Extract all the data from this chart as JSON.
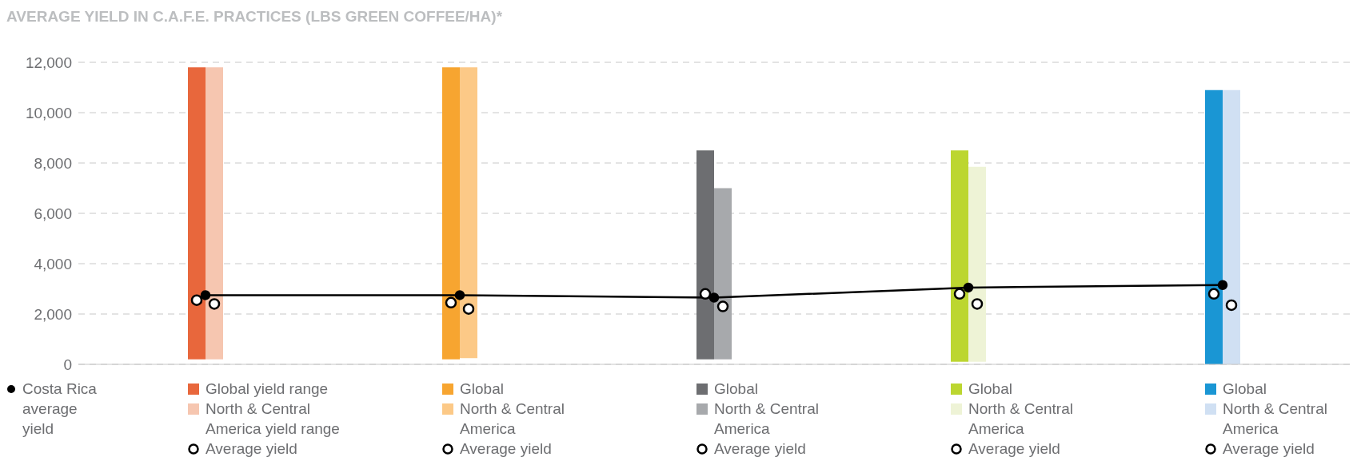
{
  "chart_data": {
    "type": "bar",
    "title": "AVERAGE YIELD IN C.A.F.E. PRACTICES (LBS GREEN COFFEE/HA)*",
    "categories": [
      null,
      null,
      null,
      null,
      null
    ],
    "series": [
      {
        "name": "Global yield range",
        "color": "#e8673c",
        "values": [
          11600,
          null,
          null,
          null,
          null
        ],
        "base": [
          200,
          null,
          null,
          null,
          null
        ]
      },
      {
        "name": "North & Central America yield range",
        "color": "#f6c6b0",
        "values": [
          11600,
          null,
          null,
          null,
          null
        ],
        "base": [
          200,
          null,
          null,
          null,
          null
        ]
      },
      {
        "name": "Global",
        "color": "#f7a530",
        "values": [
          null,
          11600,
          null,
          null,
          null
        ],
        "base": [
          null,
          200,
          null,
          null,
          null
        ]
      },
      {
        "name": "North & Central America",
        "color": "#fcc987",
        "values": [
          null,
          11550,
          null,
          null,
          null
        ],
        "base": [
          null,
          250,
          null,
          null,
          null
        ]
      },
      {
        "name": "Global",
        "color": "#6d6e71",
        "values": [
          null,
          null,
          8300,
          null,
          null
        ],
        "base": [
          null,
          null,
          200,
          null,
          null
        ]
      },
      {
        "name": "North & Central America",
        "color": "#a7a9ac",
        "values": [
          null,
          null,
          6800,
          null,
          null
        ],
        "base": [
          null,
          null,
          200,
          null,
          null
        ]
      },
      {
        "name": "Global",
        "color": "#bcd630",
        "values": [
          null,
          null,
          null,
          8400,
          null
        ],
        "base": [
          null,
          null,
          null,
          100,
          null
        ]
      },
      {
        "name": "North & Central America",
        "color": "#eef3d6",
        "values": [
          null,
          null,
          null,
          7750,
          null
        ],
        "base": [
          null,
          null,
          null,
          100,
          null
        ]
      },
      {
        "name": "Global",
        "color": "#1a96d4",
        "values": [
          null,
          null,
          null,
          null,
          10900
        ],
        "base": [
          null,
          null,
          null,
          null,
          0
        ]
      },
      {
        "name": "North & Central America",
        "color": "#d0e0f3",
        "values": [
          null,
          null,
          null,
          null,
          10900
        ],
        "base": [
          null,
          null,
          null,
          null,
          0
        ]
      },
      {
        "type": "scatter",
        "name": "Average yield",
        "color": "#000000",
        "values": [
          2550,
          2450,
          2800,
          2800,
          2800
        ]
      },
      {
        "type": "scatter",
        "color": "#000000",
        "values": [
          2400,
          2200,
          2300,
          2400,
          2350
        ]
      },
      {
        "type": "line",
        "name": "Costa Rica average yield",
        "color": "#000000",
        "values": [
          2750,
          2750,
          2650,
          3050,
          3150
        ]
      }
    ],
    "ylim": [
      0,
      12000
    ],
    "yticks": [
      {
        "value": 0,
        "label": "0"
      },
      {
        "value": 2000,
        "label": "2,000"
      },
      {
        "value": 4000,
        "label": "4,000"
      },
      {
        "value": 6000,
        "label": "6,000"
      },
      {
        "value": 8000,
        "label": "8,000"
      },
      {
        "value": 10000,
        "label": "10,000"
      },
      {
        "value": 12000,
        "label": "12,000"
      }
    ],
    "grid": "y",
    "legend": "bottom",
    "marker": "circle",
    "line_style": "solid"
  }
}
